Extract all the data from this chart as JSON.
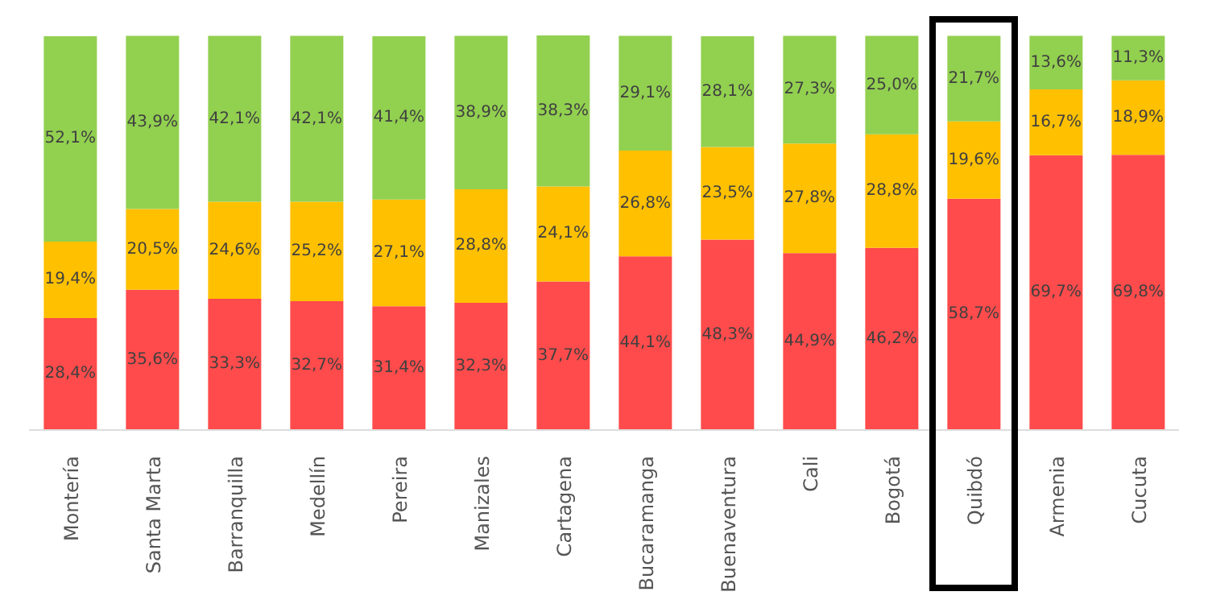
{
  "chart_data": {
    "type": "bar",
    "stacked": true,
    "categories": [
      "Montería",
      "Santa Marta",
      "Barranquilla",
      "Medellín",
      "Pereira",
      "Manizales",
      "Cartagena",
      "Bucaramanga",
      "Buenaventura",
      "Cali",
      "Bogotá",
      "Quibdó",
      "Armenia",
      "Cucuta"
    ],
    "series": [
      {
        "color": "#ff4b4b",
        "values": [
          28.4,
          35.6,
          33.3,
          32.7,
          31.4,
          32.3,
          37.7,
          44.1,
          48.3,
          44.9,
          46.2,
          58.7,
          69.7,
          69.8
        ],
        "value_labels": [
          "28,4%",
          "35,6%",
          "33,3%",
          "32,7%",
          "31,4%",
          "32,3%",
          "37,7%",
          "44,1%",
          "48,3%",
          "44,9%",
          "46,2%",
          "58,7%",
          "69,7%",
          "69,8%"
        ]
      },
      {
        "color": "#ffc000",
        "values": [
          19.4,
          20.5,
          24.6,
          25.2,
          27.1,
          28.8,
          24.1,
          26.8,
          23.5,
          27.8,
          28.8,
          19.6,
          16.7,
          18.9
        ],
        "value_labels": [
          "19,4%",
          "20,5%",
          "24,6%",
          "25,2%",
          "27,1%",
          "28,8%",
          "24,1%",
          "26,8%",
          "23,5%",
          "27,8%",
          "28,8%",
          "19,6%",
          "16,7%",
          "18,9%"
        ]
      },
      {
        "color": "#92d050",
        "values": [
          52.1,
          43.9,
          42.1,
          42.1,
          41.4,
          38.9,
          38.3,
          29.1,
          28.1,
          27.3,
          25.0,
          21.7,
          13.6,
          11.3
        ],
        "value_labels": [
          "52,1%",
          "43,9%",
          "42,1%",
          "42,1%",
          "41,4%",
          "38,9%",
          "38,3%",
          "29,1%",
          "28,1%",
          "27,3%",
          "25,0%",
          "21,7%",
          "13,6%",
          "11,3%"
        ]
      }
    ]
  }
}
